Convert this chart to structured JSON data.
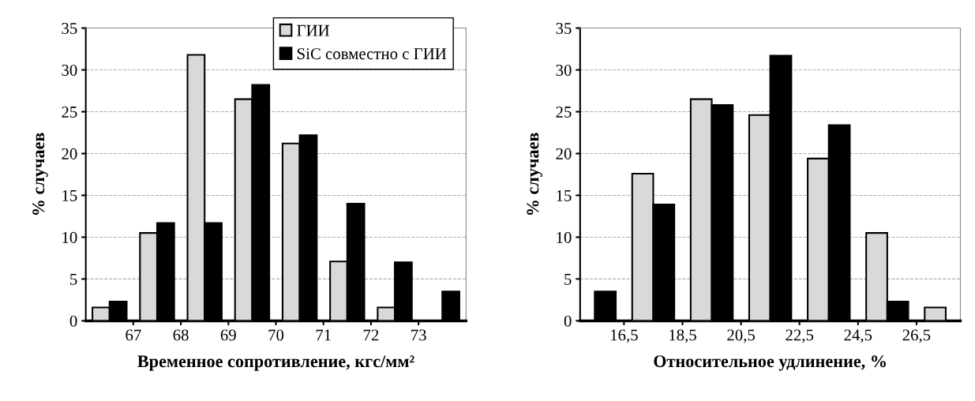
{
  "chart_data": [
    {
      "type": "bar",
      "xlabel": "Временное сопротивление, кгс/мм²",
      "ylabel": "% случаев",
      "x": [
        66.5,
        67.5,
        68.5,
        69.5,
        70.5,
        71.5,
        72.5,
        73.5
      ],
      "xlim": [
        66,
        74
      ],
      "xticks": [
        67,
        68,
        69,
        70,
        71,
        72,
        73
      ],
      "ylim": [
        0,
        35
      ],
      "yticks": [
        0,
        5,
        10,
        15,
        20,
        25,
        30,
        35
      ],
      "grid": "y",
      "legend": "top",
      "series": [
        {
          "name": "ГИИ",
          "color": "#d9d9d9",
          "values": [
            1.6,
            10.5,
            31.8,
            26.5,
            21.2,
            7.1,
            1.6,
            null
          ]
        },
        {
          "name": "SiC совместно с ГИИ",
          "color": "#000000",
          "values": [
            2.3,
            11.7,
            11.7,
            28.2,
            22.2,
            14.0,
            7.0,
            3.5
          ]
        }
      ]
    },
    {
      "type": "bar",
      "xlabel": "Относительное удлинение, %",
      "ylabel": "% случаев",
      "x": [
        15.5,
        17.5,
        19.5,
        21.5,
        23.5,
        25.5,
        27.5
      ],
      "xlim": [
        15,
        28
      ],
      "xticks": [
        {
          "value": 16.5,
          "label": "16,5"
        },
        {
          "value": 18.5,
          "label": "18,5"
        },
        {
          "value": 20.5,
          "label": "20,5"
        },
        {
          "value": 22.5,
          "label": "22,5"
        },
        {
          "value": 24.5,
          "label": "24,5"
        },
        {
          "value": 26.5,
          "label": "26,5"
        }
      ],
      "ylim": [
        0,
        35
      ],
      "yticks": [
        0,
        5,
        10,
        15,
        20,
        25,
        30,
        35
      ],
      "grid": "y",
      "series": [
        {
          "color": "#d9d9d9",
          "values": [
            null,
            17.6,
            26.5,
            24.6,
            19.4,
            10.5,
            1.6
          ]
        },
        {
          "color": "#000000",
          "values": [
            3.5,
            13.9,
            25.8,
            31.7,
            23.4,
            2.3,
            null
          ]
        }
      ]
    }
  ]
}
